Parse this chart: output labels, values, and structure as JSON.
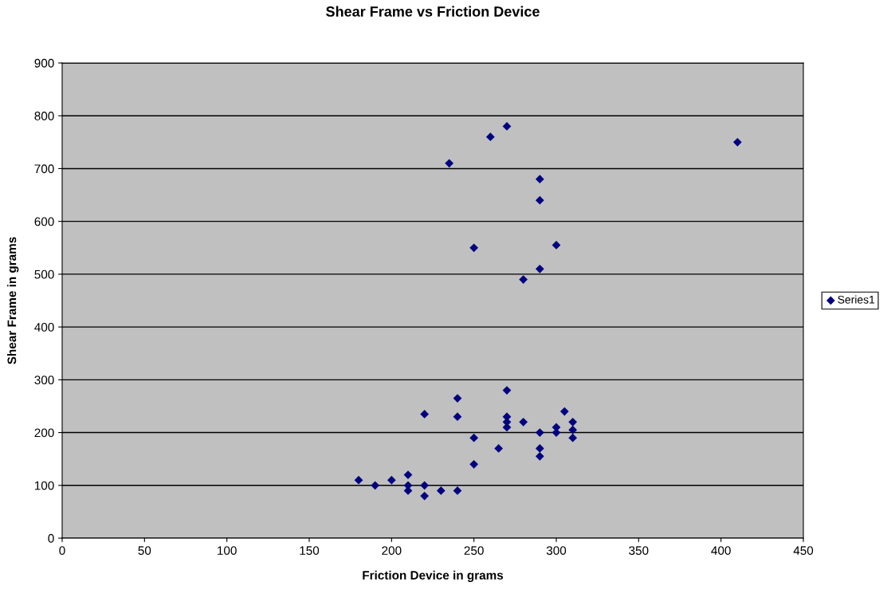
{
  "chart_data": {
    "type": "scatter",
    "title": "Shear Frame vs Friction Device",
    "xlabel": "Friction Device in grams",
    "ylabel": "Shear Frame in grams",
    "x": [
      180,
      190,
      200,
      210,
      210,
      210,
      220,
      220,
      220,
      230,
      240,
      240,
      240,
      250,
      250,
      250,
      235,
      260,
      265,
      270,
      270,
      270,
      270,
      270,
      280,
      280,
      290,
      290,
      290,
      290,
      290,
      290,
      300,
      300,
      300,
      305,
      310,
      310,
      310,
      410
    ],
    "series": [
      {
        "name": "Series1",
        "color": "#000080",
        "values": [
          110,
          100,
          110,
          120,
          100,
          90,
          235,
          100,
          80,
          90,
          265,
          230,
          90,
          190,
          140,
          550,
          710,
          760,
          170,
          780,
          280,
          230,
          220,
          210,
          220,
          490,
          680,
          640,
          510,
          200,
          170,
          155,
          555,
          210,
          200,
          240,
          220,
          205,
          190,
          750
        ]
      }
    ],
    "xlim": [
      0,
      450
    ],
    "xticks": [
      0,
      50,
      100,
      150,
      200,
      250,
      300,
      350,
      400,
      450
    ],
    "ylim": [
      0,
      900
    ],
    "yticks": [
      0,
      100,
      200,
      300,
      400,
      500,
      600,
      700,
      800,
      900
    ],
    "grid": "y",
    "legend": "right",
    "marker": "diamond"
  }
}
